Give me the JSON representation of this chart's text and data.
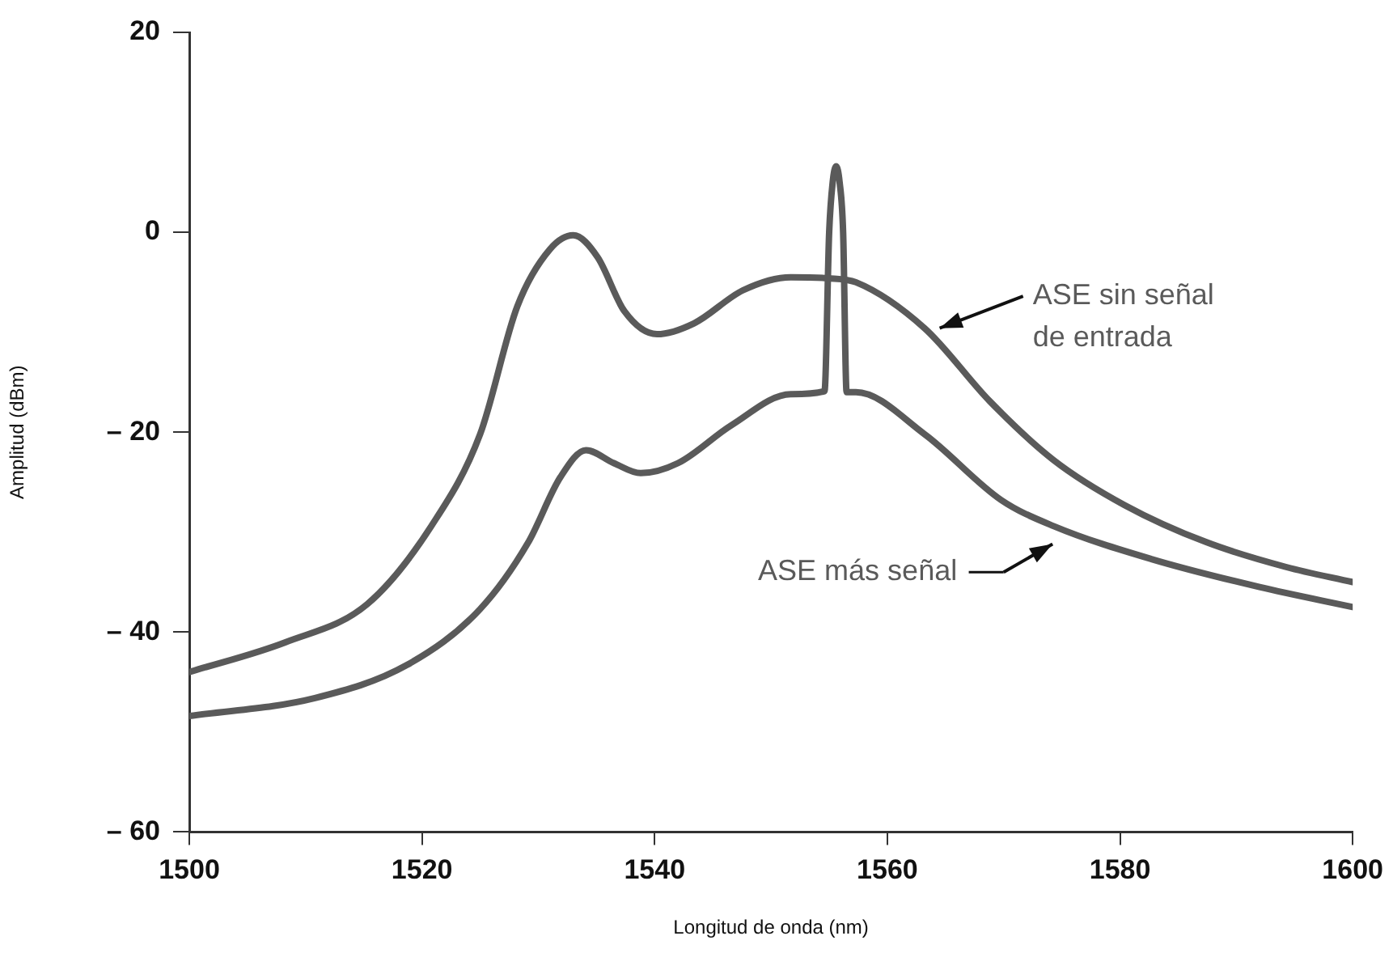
{
  "chart_data": {
    "type": "line",
    "xlabel": "Longitud de onda (nm)",
    "ylabel": "Amplitud (dBm)",
    "xlim": [
      1500,
      1600
    ],
    "xticks": [
      1500,
      1520,
      1540,
      1560,
      1580,
      1600
    ],
    "ylim": [
      -60,
      20
    ],
    "yticks": [
      {
        "value": -60,
        "label": "– 60"
      },
      {
        "value": -40,
        "label": "– 40"
      },
      {
        "value": -20,
        "label": "– 20"
      },
      0,
      20
    ],
    "marker": "none",
    "line_style": "solid",
    "series": [
      {
        "name": "ASE sin señal de entrada",
        "color": "#5a5a5a",
        "x": [
          1500,
          1508.3,
          1515.3,
          1520.8,
          1525,
          1528.2,
          1531,
          1533,
          1535.1,
          1537.4,
          1540.2,
          1543.4,
          1547.6,
          1551.7,
          1554.9,
          1557.3,
          1563.2,
          1568.8,
          1574.3,
          1580.4,
          1587.4,
          1594.3,
          1600
        ],
        "values": [
          -44,
          -41,
          -37.2,
          -29.4,
          -20.2,
          -7.4,
          -1.7,
          -0.3,
          -2.5,
          -7.9,
          -10.2,
          -9.1,
          -5.8,
          -4.5,
          -4.6,
          -5,
          -9.6,
          -16.9,
          -22.8,
          -27.3,
          -31,
          -33.5,
          -35
        ]
      },
      {
        "name": "ASE más señal",
        "color": "#5a5a5a",
        "x": [
          1500,
          1510.8,
          1518.7,
          1525,
          1529.1,
          1531.9,
          1534.1,
          1536.5,
          1538.8,
          1542,
          1546.6,
          1551.7,
          1554.6,
          1555,
          1555.3,
          1555.6,
          1555.9,
          1556.2,
          1556.5,
          1557.3,
          1563.2,
          1569.8,
          1574.3,
          1582.7,
          1592,
          1600
        ],
        "values": [
          -48.4,
          -46.6,
          -43.3,
          -37.7,
          -31.1,
          -24.5,
          -21.8,
          -23.1,
          -24.1,
          -23.1,
          -19.3,
          -16.2,
          -15.9,
          0,
          5,
          6.6,
          5,
          0,
          -16,
          -16,
          -20.2,
          -26.8,
          -29.4,
          -32.7,
          -35.5,
          -37.5
        ]
      }
    ]
  }
}
